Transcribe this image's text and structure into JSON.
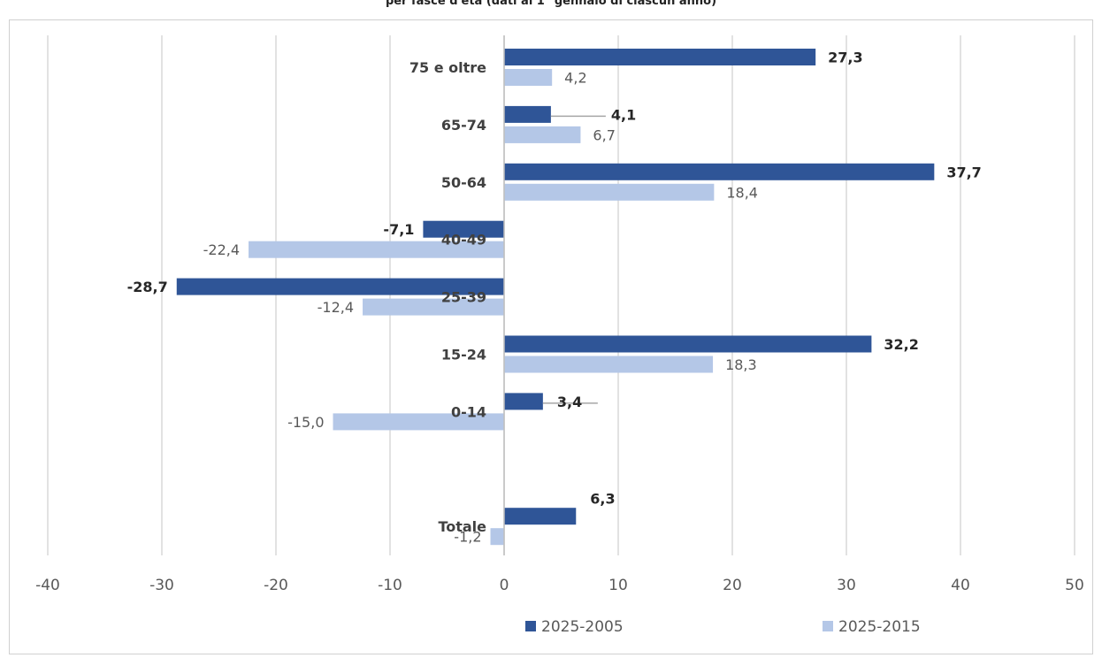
{
  "page_title": "per fasce d'età (dati al 1° gennaio di ciascun anno)",
  "colors": {
    "series_a": "#2F5597",
    "series_b": "#B4C7E7",
    "grid": "#D9D9D9",
    "text": "#595959"
  },
  "chart_data": {
    "type": "bar",
    "orientation": "horizontal",
    "categories": [
      "75 e oltre",
      "65-74",
      "50-64",
      "40-49",
      "25-39",
      "15-24",
      "0-14",
      "Totale"
    ],
    "series": [
      {
        "name": "2025-2005",
        "values": [
          27.3,
          4.1,
          37.7,
          -7.1,
          -28.7,
          32.2,
          3.4,
          6.3
        ]
      },
      {
        "name": "2025-2015",
        "values": [
          4.2,
          6.7,
          18.4,
          -22.4,
          -12.4,
          18.3,
          -15.0,
          -1.2
        ]
      }
    ],
    "data_labels": {
      "2025-2005": [
        "27,3",
        "4,1",
        "37,7",
        "-7,1",
        "-28,7",
        "32,2",
        "3,4",
        "6,3"
      ],
      "2025-2015": [
        "4,2",
        "6,7",
        "18,4",
        "-22,4",
        "-12,4",
        "18,3",
        "-15,0",
        "-1,2"
      ]
    },
    "x_ticks": [
      "-40",
      "-30",
      "-20",
      "-10",
      "0",
      "10",
      "20",
      "30",
      "40",
      "50"
    ],
    "xlim": [
      -40,
      50
    ],
    "grid": true,
    "legend_position": "bottom"
  }
}
